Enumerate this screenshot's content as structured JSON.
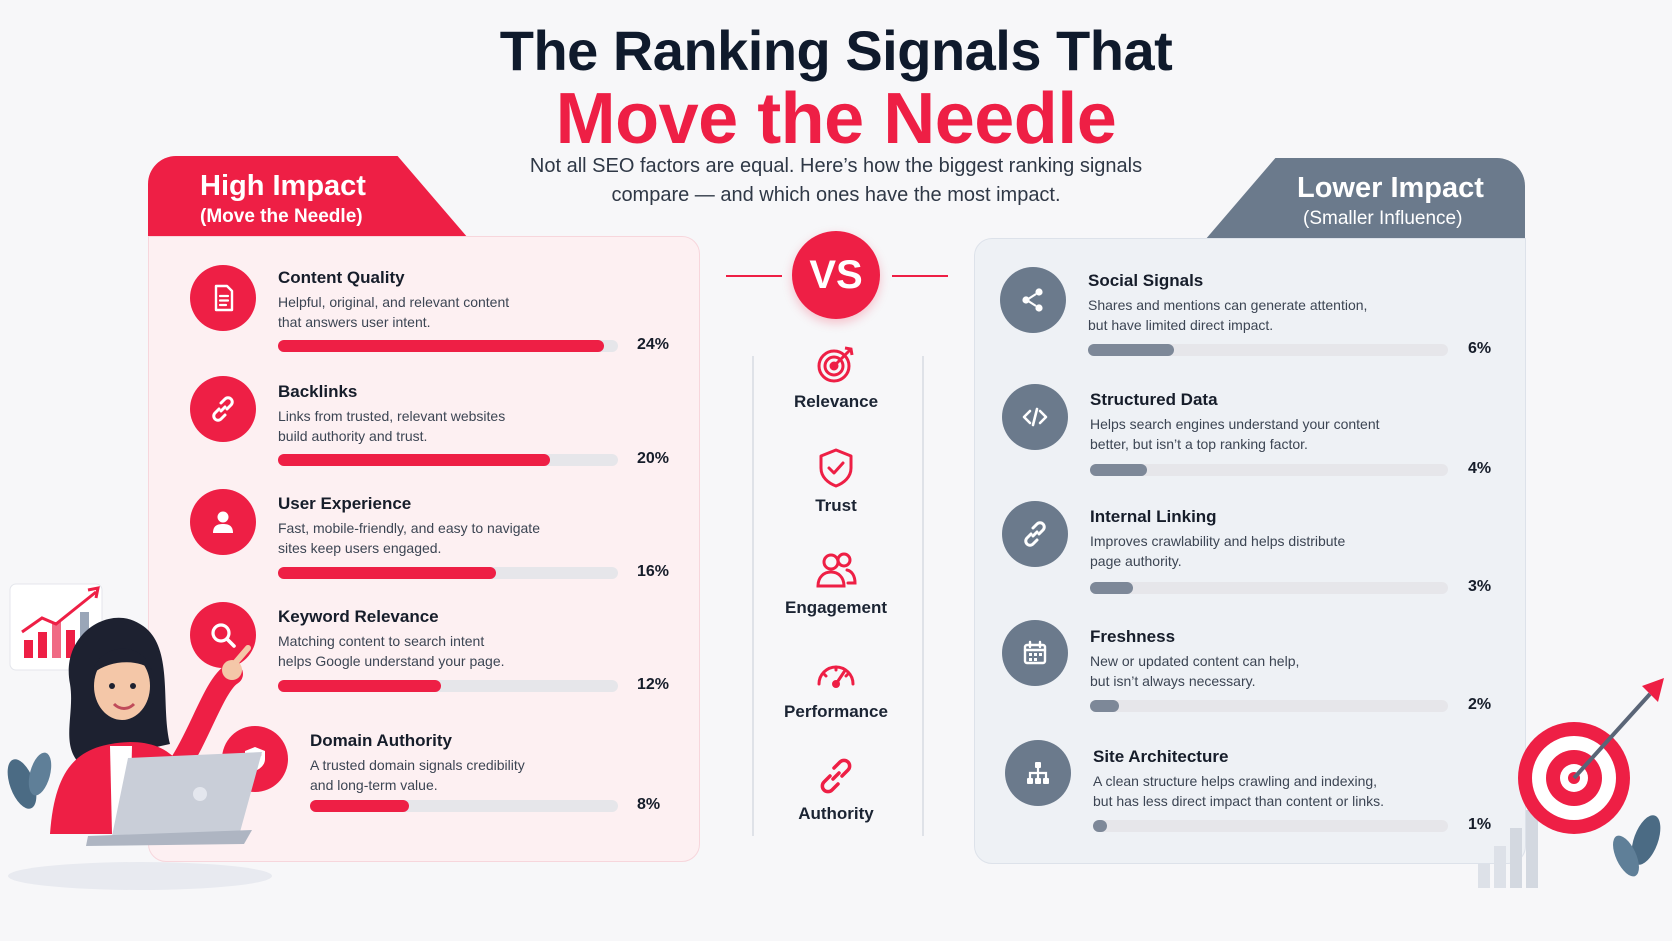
{
  "title": {
    "line1": "The Ranking Signals That",
    "line2": "Move the Needle",
    "subtitle_line1": "Not all SEO factors are equal. Here’s how the biggest ranking signals",
    "subtitle_line2": "compare — and which ones have the most impact."
  },
  "high": {
    "heading": "High Impact",
    "subheading": "(Move the Needle)",
    "color": "#ee1f45",
    "items": [
      {
        "name": "Content Quality",
        "desc1": "Helpful, original, and relevant content",
        "desc2": "that answers user intent.",
        "pct": "24%",
        "value": 24,
        "icon": "document-icon"
      },
      {
        "name": "Backlinks",
        "desc1": "Links from trusted, relevant websites",
        "desc2": "build authority and trust.",
        "pct": "20%",
        "value": 20,
        "icon": "link-icon"
      },
      {
        "name": "User Experience",
        "desc1": "Fast, mobile-friendly, and easy to navigate",
        "desc2": "sites keep users engaged.",
        "pct": "16%",
        "value": 16,
        "icon": "user-icon"
      },
      {
        "name": "Keyword Relevance",
        "desc1": "Matching content to search intent",
        "desc2": "helps Google understand your page.",
        "pct": "12%",
        "value": 12,
        "icon": "search-icon"
      },
      {
        "name": "Domain Authority",
        "desc1": "A trusted domain signals credibility",
        "desc2": "and long-term value.",
        "pct": "8%",
        "value": 8,
        "icon": "shield-check-icon"
      }
    ]
  },
  "low": {
    "heading": "Lower Impact",
    "subheading": "(Smaller Influence)",
    "color": "#6b7a8c",
    "items": [
      {
        "name": "Social Signals",
        "desc1": "Shares and mentions can generate attention,",
        "desc2": "but have limited direct impact.",
        "pct": "6%",
        "value": 6,
        "icon": "share-icon"
      },
      {
        "name": "Structured Data",
        "desc1": "Helps search engines understand your content",
        "desc2": "better, but isn’t a top ranking factor.",
        "pct": "4%",
        "value": 4,
        "icon": "code-icon"
      },
      {
        "name": "Internal Linking",
        "desc1": "Improves crawlability and helps distribute",
        "desc2": "page authority.",
        "pct": "3%",
        "value": 3,
        "icon": "link-icon"
      },
      {
        "name": "Freshness",
        "desc1": "New or updated content can help,",
        "desc2": "but isn’t always necessary.",
        "pct": "2%",
        "value": 2,
        "icon": "calendar-icon"
      },
      {
        "name": "Site Architecture",
        "desc1": "A clean structure helps crawling and indexing,",
        "desc2": "but has less direct impact than content or links.",
        "pct": "1%",
        "value": 1,
        "icon": "sitemap-icon"
      }
    ]
  },
  "center": {
    "vs": "VS",
    "signals": [
      {
        "label": "Relevance",
        "icon": "target-icon"
      },
      {
        "label": "Trust",
        "icon": "shield-check-icon"
      },
      {
        "label": "Engagement",
        "icon": "users-icon"
      },
      {
        "label": "Performance",
        "icon": "gauge-icon"
      },
      {
        "label": "Authority",
        "icon": "link-icon"
      }
    ]
  }
}
